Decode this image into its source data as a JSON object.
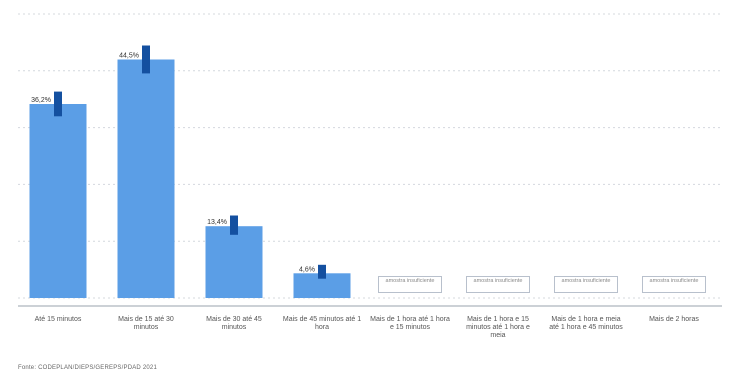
{
  "chart_data": {
    "type": "bar",
    "title": "",
    "xlabel": "",
    "ylabel": "",
    "ylim": [
      0,
      50
    ],
    "grid": true,
    "categories": [
      "Até 15 minutos",
      "Mais de 15 até 30 minutos",
      "Mais de 30 até 45 minutos",
      "Mais de 45 minutos até 1 hora",
      "Mais de 1 hora até 1 hora e 15 minutos",
      "Mais de 1 hora e 15 minutos até 1 hora e meia",
      "Mais de 1 hora e meia até 1 hora e 45 minutos",
      "Mais de 2 horas"
    ],
    "values": [
      36.2,
      44.5,
      13.4,
      4.6,
      null,
      null,
      null,
      null
    ],
    "value_labels": [
      "36,2%",
      "44,5%",
      "13,4%",
      "4,6%",
      "",
      "",
      "",
      ""
    ],
    "error_intervals": [
      [
        33.9,
        38.5
      ],
      [
        41.9,
        47.1
      ],
      [
        11.8,
        15.4
      ],
      [
        3.6,
        6.2
      ],
      null,
      null,
      null,
      null
    ],
    "insufficient_label": "amostra insuficiente",
    "colors": {
      "bar": "#5b9ee6",
      "error": "#1450a0",
      "grid": "#d4d8de"
    }
  },
  "source": "Fonte: CODEPLAN/DIEPS/GEREPS/PDAD 2021"
}
